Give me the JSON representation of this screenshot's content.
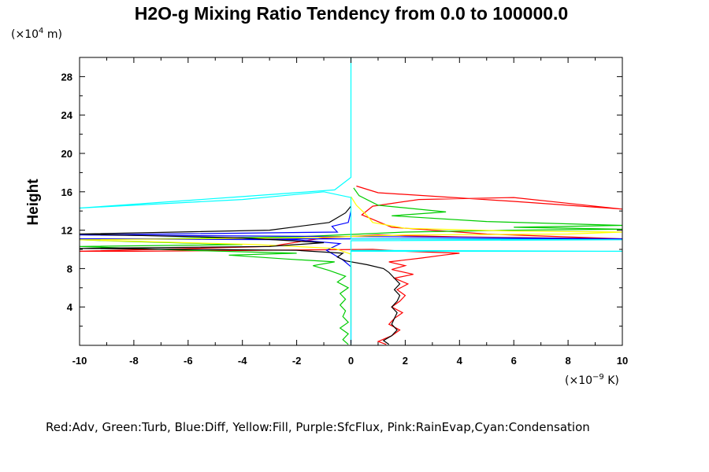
{
  "chart_data": {
    "type": "line",
    "title": "H2O-g Mixing Ratio Tendency from 0.0 to 100000.0",
    "ylabel": "Height",
    "xlabel": "",
    "x_unit_prefix": "(×10",
    "x_unit_exp": "−9",
    "x_unit_suffix": " K)",
    "y_unit_prefix": "(×10",
    "y_unit_exp": "4",
    "y_unit_suffix": " m)",
    "xlim": [
      -10,
      10
    ],
    "ylim": [
      0,
      30
    ],
    "xticks": [
      -10,
      -8,
      -6,
      -4,
      -2,
      0,
      2,
      4,
      6,
      8,
      10
    ],
    "xtick_labels": [
      "-10",
      "-8",
      "-6",
      "-4",
      "-2",
      "0",
      "2",
      "4",
      "6",
      "8",
      "10"
    ],
    "yticks": [
      4,
      8,
      12,
      16,
      20,
      24,
      28
    ],
    "ytick_labels": [
      "4",
      "8",
      "12",
      "16",
      "20",
      "24",
      "28"
    ],
    "grid": false,
    "legend_text": "Red:Adv, Green:Turb, Blue:Diff, Yellow:Fill, Purple:SfcFlux, Pink:RainEvap,Cyan:Condensation",
    "series": [
      {
        "color": "#ff0000",
        "points": [
          [
            1.3,
            0.1
          ],
          [
            1.0,
            0.4
          ],
          [
            1.5,
            1.0
          ],
          [
            1.8,
            1.6
          ],
          [
            1.4,
            2.2
          ],
          [
            1.6,
            2.8
          ],
          [
            1.9,
            3.4
          ],
          [
            1.5,
            4.0
          ],
          [
            1.8,
            4.6
          ],
          [
            2.0,
            5.2
          ],
          [
            1.7,
            5.8
          ],
          [
            2.1,
            6.4
          ],
          [
            1.6,
            7.0
          ],
          [
            2.3,
            7.4
          ],
          [
            1.5,
            7.9
          ],
          [
            2.0,
            8.3
          ],
          [
            1.4,
            8.7
          ],
          [
            2.6,
            9.1
          ],
          [
            3.4,
            9.4
          ],
          [
            4.0,
            9.6
          ],
          [
            2.0,
            9.8
          ],
          [
            0.8,
            10.0
          ],
          [
            -8.0,
            9.8
          ],
          [
            -10,
            9.8
          ],
          [
            -3.0,
            10.3
          ],
          [
            -1.0,
            11.2
          ],
          [
            1.0,
            11.5
          ],
          [
            4.0,
            11.3
          ],
          [
            10,
            11.1
          ],
          [
            5.0,
            11.6
          ],
          [
            1.5,
            12.3
          ],
          [
            0.4,
            13.6
          ],
          [
            0.8,
            14.5
          ],
          [
            2.5,
            15.2
          ],
          [
            6.0,
            15.4
          ],
          [
            10,
            14.2
          ],
          [
            6.0,
            15.0
          ],
          [
            1.0,
            15.9
          ],
          [
            0.2,
            16.6
          ]
        ]
      },
      {
        "color": "#00cc00",
        "points": [
          [
            -0.1,
            0.1
          ],
          [
            -0.3,
            0.6
          ],
          [
            -0.1,
            1.2
          ],
          [
            -0.4,
            1.8
          ],
          [
            -0.1,
            2.4
          ],
          [
            -0.3,
            3.0
          ],
          [
            -0.2,
            3.6
          ],
          [
            -0.4,
            4.2
          ],
          [
            -0.2,
            4.8
          ],
          [
            -0.4,
            5.4
          ],
          [
            -0.1,
            6.0
          ],
          [
            -0.5,
            6.6
          ],
          [
            -0.2,
            7.2
          ],
          [
            -0.8,
            7.8
          ],
          [
            -1.4,
            8.3
          ],
          [
            -0.6,
            8.7
          ],
          [
            -2.4,
            9.0
          ],
          [
            -4.5,
            9.4
          ],
          [
            -2.0,
            9.6
          ],
          [
            -6.0,
            9.9
          ],
          [
            -10,
            10.3
          ],
          [
            -4.0,
            10.5
          ],
          [
            -8.0,
            10.8
          ],
          [
            -10,
            11.0
          ],
          [
            -2.0,
            11.3
          ],
          [
            2.0,
            11.8
          ],
          [
            6.0,
            12.0
          ],
          [
            10,
            12.1
          ],
          [
            6.0,
            12.3
          ],
          [
            10,
            12.5
          ],
          [
            5.0,
            12.9
          ],
          [
            1.5,
            13.5
          ],
          [
            3.5,
            13.9
          ],
          [
            1.0,
            14.6
          ],
          [
            0.3,
            15.6
          ],
          [
            0.1,
            16.4
          ]
        ]
      },
      {
        "color": "#0000ff",
        "points": [
          [
            0,
            0.2
          ],
          [
            0,
            8.2
          ],
          [
            -0.3,
            8.9
          ],
          [
            -0.9,
            9.9
          ],
          [
            -0.4,
            10.6
          ],
          [
            -2.0,
            11.0
          ],
          [
            -10,
            11.1
          ],
          [
            10,
            11.1
          ],
          [
            2.0,
            11.3
          ],
          [
            -10,
            11.5
          ],
          [
            -0.5,
            11.8
          ],
          [
            -0.7,
            12.4
          ],
          [
            -0.1,
            12.8
          ],
          [
            0,
            14.0
          ]
        ]
      },
      {
        "color": "#ffff00",
        "points": [
          [
            0,
            2.0
          ],
          [
            0,
            9.5
          ],
          [
            -0.6,
            10.1
          ],
          [
            -3.5,
            10.5
          ],
          [
            -10,
            11.0
          ],
          [
            -2.0,
            11.2
          ],
          [
            2.0,
            11.5
          ],
          [
            8.0,
            11.6
          ],
          [
            10,
            11.8
          ],
          [
            6.0,
            11.9
          ],
          [
            2.0,
            12.2
          ],
          [
            0.8,
            12.8
          ],
          [
            0.6,
            13.5
          ],
          [
            0.2,
            14.6
          ],
          [
            0,
            15.5
          ]
        ]
      },
      {
        "color": "#000000",
        "points": [
          [
            1.4,
            0.1
          ],
          [
            1.2,
            0.5
          ],
          [
            1.5,
            1.0
          ],
          [
            1.7,
            1.6
          ],
          [
            1.5,
            2.2
          ],
          [
            1.6,
            2.8
          ],
          [
            1.7,
            3.4
          ],
          [
            1.5,
            4.0
          ],
          [
            1.7,
            4.6
          ],
          [
            1.8,
            5.2
          ],
          [
            1.6,
            5.8
          ],
          [
            1.8,
            6.4
          ],
          [
            1.6,
            7.0
          ],
          [
            1.4,
            7.6
          ],
          [
            1.2,
            8.0
          ],
          [
            0.6,
            8.4
          ],
          [
            -0.2,
            8.8
          ],
          [
            -0.5,
            9.2
          ],
          [
            -0.3,
            9.6
          ],
          [
            -2.0,
            9.9
          ],
          [
            -10,
            10.1
          ],
          [
            -3.0,
            10.3
          ],
          [
            -1.0,
            10.7
          ],
          [
            -4.0,
            11.2
          ],
          [
            -10,
            11.6
          ],
          [
            -3.0,
            12.0
          ],
          [
            -0.8,
            12.8
          ],
          [
            -0.2,
            13.8
          ],
          [
            0,
            14.5
          ]
        ]
      },
      {
        "color": "#00ffff",
        "points": [
          [
            0,
            0
          ],
          [
            0,
            9.8
          ],
          [
            10,
            9.8
          ],
          [
            0,
            9.9
          ],
          [
            0,
            10.9
          ],
          [
            10,
            11.0
          ],
          [
            0,
            11.1
          ],
          [
            0,
            15.4
          ],
          [
            -1.0,
            16.0
          ],
          [
            -4.0,
            15.2
          ],
          [
            -10,
            14.3
          ],
          [
            -4.0,
            15.5
          ],
          [
            -0.6,
            16.2
          ],
          [
            0,
            17.5
          ],
          [
            0,
            30
          ]
        ]
      }
    ]
  }
}
